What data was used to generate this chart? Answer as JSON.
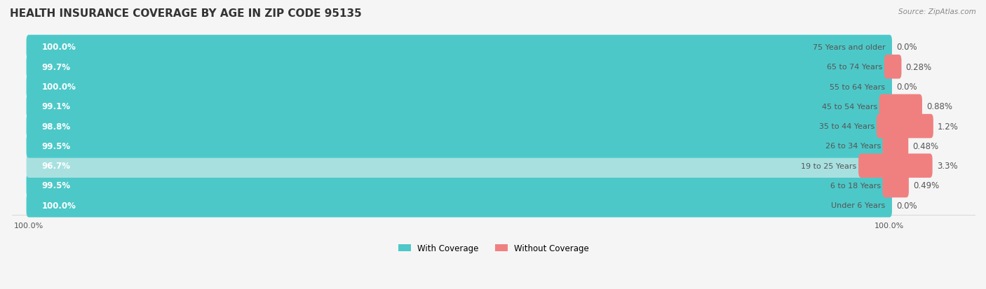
{
  "title": "HEALTH INSURANCE COVERAGE BY AGE IN ZIP CODE 95135",
  "source": "Source: ZipAtlas.com",
  "categories": [
    "Under 6 Years",
    "6 to 18 Years",
    "19 to 25 Years",
    "26 to 34 Years",
    "35 to 44 Years",
    "45 to 54 Years",
    "55 to 64 Years",
    "65 to 74 Years",
    "75 Years and older"
  ],
  "with_coverage": [
    100.0,
    99.5,
    96.7,
    99.5,
    98.8,
    99.1,
    100.0,
    99.7,
    100.0
  ],
  "without_coverage": [
    0.0,
    0.49,
    3.3,
    0.48,
    1.2,
    0.88,
    0.0,
    0.28,
    0.0
  ],
  "with_coverage_labels": [
    "100.0%",
    "99.5%",
    "96.7%",
    "99.5%",
    "98.8%",
    "99.1%",
    "100.0%",
    "99.7%",
    "100.0%"
  ],
  "without_coverage_labels": [
    "0.0%",
    "0.49%",
    "3.3%",
    "0.48%",
    "1.2%",
    "0.88%",
    "0.0%",
    "0.28%",
    "0.0%"
  ],
  "color_with": "#4DC8C8",
  "color_without": "#F08080",
  "color_with_light": "#A8E0E0",
  "bg_color": "#f5f5f5",
  "bar_bg_color": "#ffffff",
  "bar_height": 0.62,
  "title_fontsize": 11,
  "label_fontsize": 8.5,
  "legend_label_with": "With Coverage",
  "legend_label_without": "Without Coverage"
}
